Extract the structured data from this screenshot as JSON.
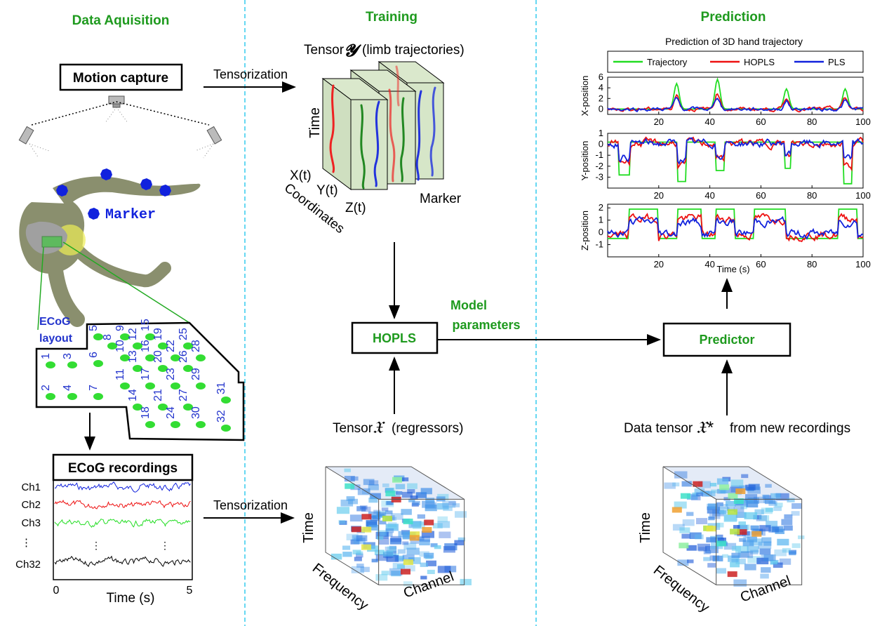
{
  "panels": {
    "acquisition": "Data Aquisition",
    "training": "Training",
    "prediction": "Prediction"
  },
  "acquisition": {
    "motion_capture": "Motion capture",
    "marker_label": "Marker",
    "ecog_layout": [
      "ECoG",
      "layout"
    ],
    "electrodes": [
      "1",
      "2",
      "3",
      "4",
      "5",
      "6",
      "7",
      "8",
      "9",
      "10",
      "11",
      "12",
      "13",
      "14",
      "15",
      "16",
      "17",
      "18",
      "19",
      "20",
      "21",
      "22",
      "23",
      "24",
      "25",
      "26",
      "27",
      "28",
      "29",
      "30",
      "31",
      "32"
    ],
    "ecog_recordings": "ECoG recordings",
    "channels": [
      "Ch1",
      "Ch2",
      "Ch3",
      "⋮",
      "Ch32"
    ],
    "rec_x_ticks": [
      "0",
      "5"
    ],
    "rec_xlabel": "Time (s)"
  },
  "training": {
    "tensorization_top": "Tensorization",
    "tensorization_bottom": "Tensorization",
    "tensor_y_prefix": "Tensor",
    "tensor_y_symbol": "𝓨",
    "tensor_y_suffix": "(limb trajectories)",
    "axis_time": "Time",
    "coords": [
      "X(t)",
      "Y(t)",
      "Z(t)"
    ],
    "coordinates_label": "Coordinates",
    "marker_axis": "Marker",
    "hopls": "HOPLS",
    "model_parameters": [
      "Model",
      "parameters"
    ],
    "tensor_x_prefix": "Tensor",
    "tensor_x_symbol": "𝔛",
    "tensor_x_suffix": "(regressors)",
    "cube_time": "Time",
    "cube_frequency": "Frequency",
    "cube_channel": "Channel"
  },
  "prediction": {
    "predictor": "Predictor",
    "data_tensor_prefix": "Data tensor",
    "data_tensor_symbol": "𝔛*",
    "data_tensor_suffix": "from new recordings",
    "cube_time": "Time",
    "cube_frequency": "Frequency",
    "cube_channel": "Channel"
  },
  "chart_data": {
    "type": "line",
    "title": "Prediction of 3D hand trajectory",
    "legend": [
      "Trajectory",
      "HOPLS",
      "PLS"
    ],
    "legend_placement": "top",
    "colors": {
      "Trajectory": "#22dd22",
      "HOPLS": "#ee1111",
      "PLS": "#1122dd"
    },
    "xlabel": "Time (s)",
    "xlim": [
      0,
      100
    ],
    "x_ticks": [
      "20",
      "40",
      "60",
      "80",
      "100"
    ],
    "subplots": [
      {
        "ylabel": "X-position",
        "ylim": [
          -1,
          6
        ],
        "y_ticks": [
          "6",
          "4",
          "2",
          "0"
        ],
        "y_tick_values": [
          6,
          4,
          2,
          0
        ]
      },
      {
        "ylabel": "Y-position",
        "ylim": [
          -4,
          1
        ],
        "y_ticks": [
          "1",
          "0",
          "-1",
          "-2",
          "-3"
        ],
        "y_tick_values": [
          1,
          0,
          -1,
          -2,
          -3
        ]
      },
      {
        "ylabel": "Z-position",
        "ylim": [
          -2,
          2.3
        ],
        "y_ticks": [
          "2",
          "1",
          "0",
          "-1"
        ],
        "y_tick_values": [
          2,
          1,
          0,
          -1
        ]
      }
    ]
  }
}
